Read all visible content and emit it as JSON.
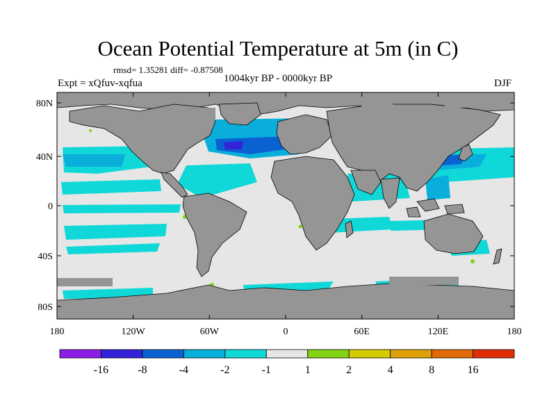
{
  "title": "Ocean Potential Temperature at 5m (in C)",
  "stats": "rmsd= 1.35281  diff= -0.87508",
  "experiment": "Expt = xQfuv-xqfua",
  "period": "1004kyr BP - 0000kyr BP",
  "season": "DJF",
  "axes": {
    "lat_labels": [
      "80N",
      "40N",
      "0",
      "40S",
      "80S"
    ],
    "lon_labels": [
      "180",
      "120W",
      "60W",
      "0",
      "60E",
      "120E",
      "180"
    ]
  },
  "colorbar": {
    "labels": [
      "-16",
      "-8",
      "-4",
      "-2",
      "-1",
      "1",
      "2",
      "4",
      "8",
      "16"
    ],
    "colors": [
      "#8b1fe8",
      "#3423d8",
      "#0a62d2",
      "#0aaedb",
      "#11d8d8",
      "#e6e6e6",
      "#82d314",
      "#d4cc00",
      "#e0a00a",
      "#e06a06",
      "#e02e06"
    ]
  },
  "colors": {
    "land": "#959595",
    "ocean_neutral": "#e6e6e6",
    "coastline": "#000000"
  }
}
